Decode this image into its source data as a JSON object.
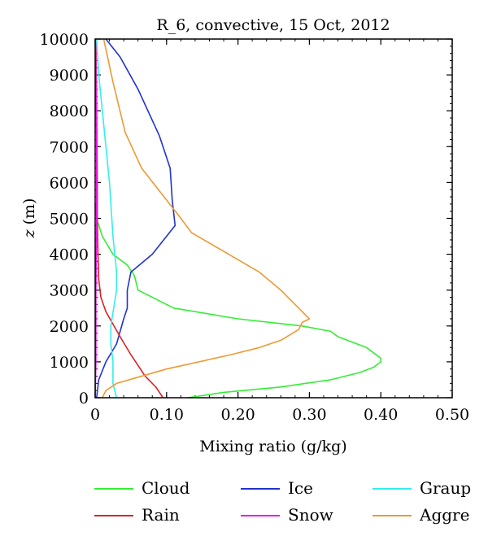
{
  "chart_data": {
    "type": "line",
    "title": "R_6, convective, 15 Oct, 2012",
    "xlabel": "Mixing ratio (g/kg)",
    "ylabel_var": "z",
    "ylabel_unit": "(m)",
    "xlim": [
      0,
      0.5
    ],
    "ylim": [
      0,
      10000
    ],
    "xticks": [
      0,
      0.1,
      0.2,
      0.3,
      0.4,
      0.5
    ],
    "xtick_labels": [
      "0",
      "0.10",
      "0.20",
      "0.30",
      "0.40",
      "0.50"
    ],
    "yticks": [
      0,
      1000,
      2000,
      3000,
      4000,
      5000,
      6000,
      7000,
      8000,
      9000,
      10000
    ],
    "ytick_labels": [
      "0",
      "1000",
      "2000",
      "3000",
      "4000",
      "5000",
      "6000",
      "7000",
      "8000",
      "9000",
      "10000"
    ],
    "grid": false,
    "legend_position": "bottom",
    "series": [
      {
        "name": "Cloud",
        "color": "#33ee33",
        "x": [
          0.13,
          0.18,
          0.26,
          0.33,
          0.37,
          0.39,
          0.4,
          0.4,
          0.38,
          0.34,
          0.33,
          0.29,
          0.2,
          0.11,
          0.06,
          0.055,
          0.045,
          0.025,
          0.01,
          0.002,
          0
        ],
        "y": [
          0,
          150,
          300,
          500,
          700,
          850,
          1000,
          1100,
          1400,
          1700,
          1850,
          2000,
          2200,
          2500,
          3000,
          3400,
          3700,
          4000,
          4500,
          5000,
          5400
        ]
      },
      {
        "name": "Ice",
        "color": "#2233cc",
        "x": [
          0.002,
          0.005,
          0.015,
          0.03,
          0.04,
          0.045,
          0.045,
          0.05,
          0.08,
          0.1,
          0.112,
          0.108,
          0.105,
          0.09,
          0.06,
          0.035,
          0.015
        ],
        "y": [
          0,
          500,
          1000,
          1500,
          2200,
          2500,
          3000,
          3500,
          4000,
          4500,
          4800,
          5500,
          6400,
          7300,
          8600,
          9500,
          10000
        ]
      },
      {
        "name": "Rain",
        "color": "#dd2222",
        "x": [
          0.095,
          0.085,
          0.07,
          0.05,
          0.035,
          0.015,
          0.008,
          0.005,
          0.004,
          0.003,
          0.003,
          0.002,
          0.001
        ],
        "y": [
          0,
          300,
          600,
          1200,
          1700,
          2400,
          2800,
          3300,
          4000,
          5000,
          6000,
          8000,
          10000
        ]
      },
      {
        "name": "Snow",
        "color": "#ee11ee",
        "x": [
          0,
          0.001,
          0.001,
          0.002,
          0.002,
          0.001,
          0.0005
        ],
        "y": [
          0,
          1000,
          3000,
          5000,
          7000,
          9000,
          10000
        ]
      },
      {
        "name": "Graup",
        "color": "#33eeee",
        "x": [
          0.03,
          0.025,
          0.025,
          0.022,
          0.022,
          0.026,
          0.03,
          0.03,
          0.025,
          0.02,
          0.015,
          0.01,
          0.005,
          0.002
        ],
        "y": [
          0,
          400,
          1000,
          1500,
          2000,
          2500,
          3000,
          3500,
          4500,
          6000,
          7000,
          8000,
          9000,
          10000
        ]
      },
      {
        "name": "Aggre",
        "color": "#ee9933",
        "x": [
          0.01,
          0.015,
          0.03,
          0.1,
          0.19,
          0.23,
          0.26,
          0.285,
          0.29,
          0.3,
          0.28,
          0.26,
          0.23,
          0.135,
          0.12,
          0.065,
          0.042,
          0.025,
          0.012
        ],
        "y": [
          0,
          200,
          400,
          800,
          1200,
          1400,
          1600,
          1900,
          2100,
          2200,
          2600,
          3000,
          3500,
          4600,
          5000,
          6400,
          7400,
          8800,
          10000
        ]
      }
    ]
  },
  "legend": {
    "items": [
      {
        "label": "Cloud",
        "color": "#33ee33"
      },
      {
        "label": "Ice",
        "color": "#2233cc"
      },
      {
        "label": "Graup",
        "color": "#33eeee"
      },
      {
        "label": "Rain",
        "color": "#dd2222"
      },
      {
        "label": "Snow",
        "color": "#ee11ee"
      },
      {
        "label": "Aggre",
        "color": "#ee9933"
      }
    ]
  }
}
